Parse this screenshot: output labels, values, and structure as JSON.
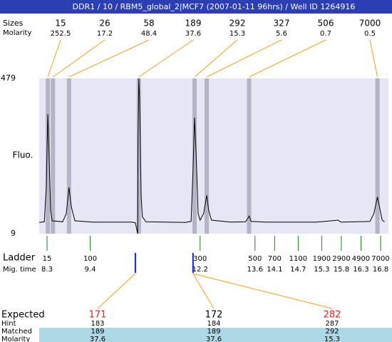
{
  "title": "DDR1 / 10 / RBM5_global_2|MCF7 (2007-01-11 96hrs) / Well ID 1264916",
  "chart_data": {
    "type": "line",
    "ylabel": "Fluo.",
    "ylim": [
      9,
      479
    ],
    "yticks": [
      9,
      479
    ],
    "xlim": [
      8.1,
      17.0
    ],
    "x": [
      8.1,
      8.23,
      8.28,
      8.32,
      8.35,
      8.39,
      8.43,
      8.7,
      8.79,
      8.86,
      8.92,
      9.01,
      9.46,
      10.46,
      10.55,
      10.59,
      10.61,
      10.62,
      10.64,
      10.66,
      10.7,
      10.73,
      10.82,
      11.82,
      11.97,
      12.02,
      12.06,
      12.1,
      12.15,
      12.2,
      12.29,
      12.37,
      12.42,
      12.49,
      12.99,
      13.36,
      13.45,
      13.5,
      13.9,
      15.17,
      15.72,
      15.79,
      16.53,
      16.63,
      16.72,
      16.79,
      16.84,
      16.9
    ],
    "series": [
      {
        "color": "#000000",
        "values": [
          43,
          45,
          150,
          371,
          250,
          80,
          48,
          45,
          70,
          149,
          90,
          48,
          44,
          44,
          42,
          20,
          9,
          300,
          479,
          420,
          120,
          60,
          45,
          43,
          46,
          200,
          360,
          250,
          70,
          50,
          70,
          125,
          80,
          50,
          44,
          45,
          62,
          46,
          44,
          44,
          50,
          44,
          46,
          70,
          120,
          80,
          50,
          45
        ]
      }
    ],
    "peaks": {
      "x": [
        8.32,
        8.45,
        8.86,
        10.64,
        12.06,
        12.37,
        13.45,
        16.72
      ]
    }
  },
  "results": {
    "labels": [
      "Sizes",
      "Molarity"
    ],
    "sizes": [
      "15",
      "26",
      "58",
      "189",
      "292",
      "327",
      "506",
      "7000"
    ],
    "molarity": [
      "252.5",
      "17.2",
      "48.4",
      "37.6",
      "15.3",
      "5.6",
      "0.7",
      "0.5"
    ]
  },
  "ladder": {
    "label": "Ladder",
    "time_label": "Mig. time",
    "sizes": [
      "15",
      "100",
      "300",
      "500",
      "700",
      "1100",
      "1900",
      "2900",
      "4900",
      "7000"
    ],
    "times": [
      8.3,
      9.4,
      12.2,
      13.6,
      14.1,
      14.7,
      15.3,
      15.8,
      16.3,
      16.8
    ]
  },
  "expected": {
    "marks": [
      10.55,
      12.02
    ],
    "labels": [
      "Expected",
      "Hint",
      "Matched",
      "Molarity"
    ],
    "colors": [
      "#e02020",
      "#000000",
      "#e02020"
    ],
    "rows": [
      [
        "171",
        "172",
        "282"
      ],
      [
        "183",
        "184",
        "287"
      ],
      [
        "189",
        "189",
        "292"
      ],
      [
        "37.6",
        "37.6",
        "15.3"
      ]
    ]
  }
}
